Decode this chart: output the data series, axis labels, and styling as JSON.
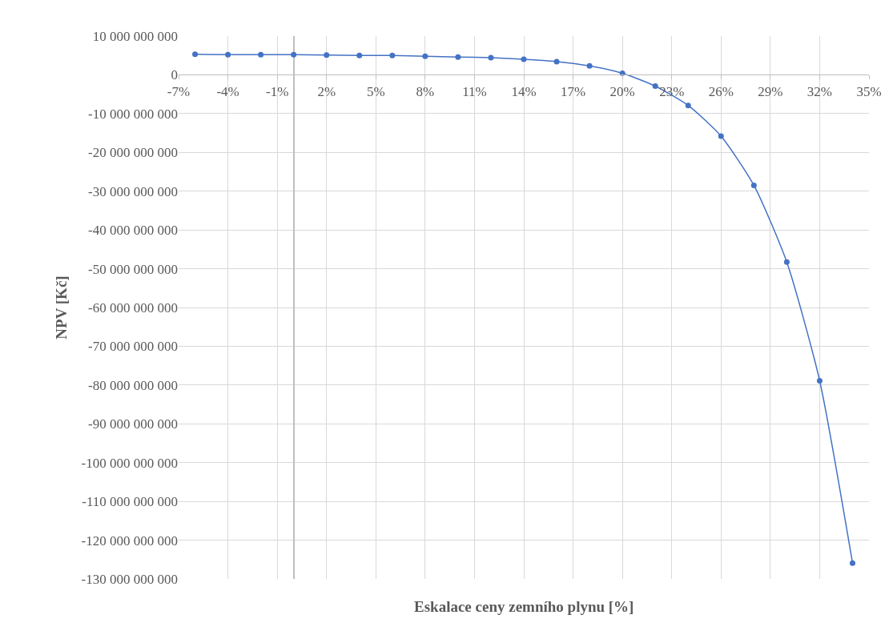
{
  "chart_data": {
    "type": "line",
    "xlabel": "Eskalace ceny zemního plynu [%]",
    "ylabel": "NPV [Kč]",
    "x": [
      -6,
      -4,
      -2,
      0,
      2,
      4,
      6,
      8,
      10,
      12,
      14,
      16,
      18,
      20,
      22,
      24,
      26,
      28,
      30,
      32,
      34
    ],
    "series": [
      {
        "color": "#4472c4",
        "values": [
          5300000000.0,
          5200000000.0,
          5200000000.0,
          5200000000.0,
          5100000000.0,
          5000000000.0,
          5000000000.0,
          4800000000.0,
          4600000000.0,
          4400000000.0,
          4000000000.0,
          3400000000.0,
          2300000000.0,
          400000000.0,
          -2900000000.0,
          -7900000000.0,
          -15800000000.0,
          -28500000000.0,
          -48300000000.0,
          -78900000000.0,
          -125900000000.0
        ]
      }
    ],
    "xlim": [
      -7,
      35
    ],
    "xticks": [
      {
        "value": -7,
        "label": "-7%"
      },
      {
        "value": -4,
        "label": "-4%"
      },
      {
        "value": -1,
        "label": "-1%"
      },
      {
        "value": 2,
        "label": "2%"
      },
      {
        "value": 5,
        "label": "5%"
      },
      {
        "value": 8,
        "label": "8%"
      },
      {
        "value": 11,
        "label": "11%"
      },
      {
        "value": 14,
        "label": "14%"
      },
      {
        "value": 17,
        "label": "17%"
      },
      {
        "value": 20,
        "label": "20%"
      },
      {
        "value": 23,
        "label": "23%"
      },
      {
        "value": 26,
        "label": "26%"
      },
      {
        "value": 29,
        "label": "29%"
      },
      {
        "value": 32,
        "label": "32%"
      },
      {
        "value": 35,
        "label": "35%"
      }
    ],
    "ylim": [
      -130000000000,
      10000000000
    ],
    "yticks": [
      {
        "value": 10000000000,
        "label": "10 000 000 000"
      },
      {
        "value": 0,
        "label": "0"
      },
      {
        "value": -10000000000,
        "label": "-10 000 000 000"
      },
      {
        "value": -20000000000,
        "label": "-20 000 000 000"
      },
      {
        "value": -30000000000,
        "label": "-30 000 000 000"
      },
      {
        "value": -40000000000,
        "label": "-40 000 000 000"
      },
      {
        "value": -50000000000,
        "label": "-50 000 000 000"
      },
      {
        "value": -60000000000,
        "label": "-60 000 000 000"
      },
      {
        "value": -70000000000,
        "label": "-70 000 000 000"
      },
      {
        "value": -80000000000,
        "label": "-80 000 000 000"
      },
      {
        "value": -90000000000,
        "label": "-90 000 000 000"
      },
      {
        "value": -100000000000,
        "label": "-100 000 000 000"
      },
      {
        "value": -110000000000,
        "label": "-110 000 000 000"
      },
      {
        "value": -120000000000,
        "label": "-120 000 000 000"
      },
      {
        "value": -130000000000,
        "label": "-130 000 000 000"
      }
    ],
    "grid": true,
    "marker": "circle",
    "line_style": "solid"
  }
}
